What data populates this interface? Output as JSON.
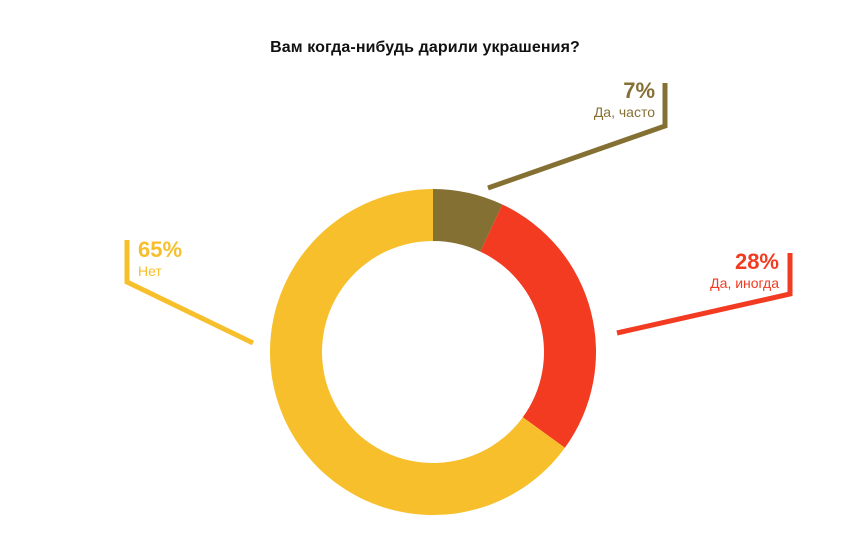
{
  "chart_data": {
    "type": "pie",
    "variant": "donut",
    "title": "Вам когда-нибудь дарили украшения?",
    "title_color": "#111111",
    "background": "#ffffff",
    "start_angle_deg": 0,
    "direction": "clockwise",
    "inner_radius_ratio": 0.68,
    "legend_position": "callouts",
    "series": [
      {
        "name": "Да, часто",
        "value": 7,
        "pct_label": "7%",
        "color": "#857034"
      },
      {
        "name": "Да, иногда",
        "value": 28,
        "pct_label": "28%",
        "color": "#F23B21"
      },
      {
        "name": "Нет",
        "value": 65,
        "pct_label": "65%",
        "color": "#F6BF2B"
      }
    ]
  }
}
